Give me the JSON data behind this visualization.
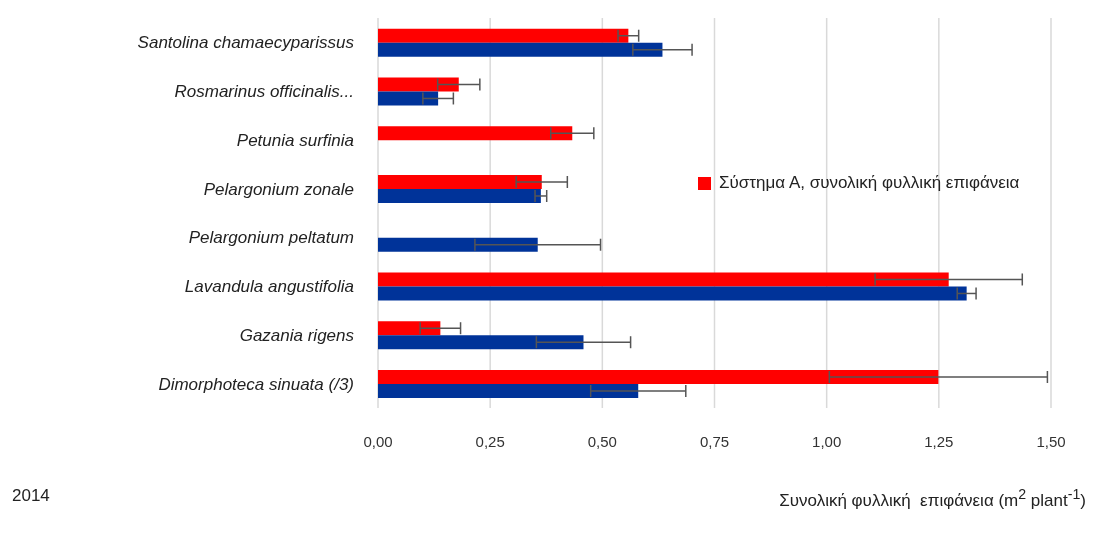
{
  "chart_data": {
    "type": "bar",
    "orientation": "horizontal",
    "categories": [
      "Santolina chamaecyparissus",
      "Rosmarinus officinalis...",
      "Petunia surfinia",
      "Pelargonium zonale",
      "Pelargonium peltatum",
      "Lavandula angustifolia",
      "Gazania rigens",
      "Dimorphoteca sinuata (/3)"
    ],
    "series": [
      {
        "name": "Σύστημα Α, συνολική φυλλική επιφάνεια",
        "color": "#ff0000",
        "values": [
          0.558,
          0.18,
          0.433,
          0.365,
          0,
          1.272,
          0.139,
          1.249
        ],
        "errors": [
          0.023,
          0.047,
          0.048,
          0.057,
          null,
          0.164,
          0.045,
          0.243
        ]
      },
      {
        "color": "#003399",
        "values": [
          0.634,
          0.134,
          0,
          0.363,
          0.356,
          1.312,
          0.458,
          0.58
        ],
        "errors": [
          0.066,
          0.034,
          null,
          0.013,
          0.14,
          0.021,
          0.105,
          0.106
        ]
      }
    ],
    "xlim": [
      0,
      1.5
    ],
    "xticks": [
      {
        "value": 0,
        "label": "0,00"
      },
      {
        "value": 0.25,
        "label": "0,25"
      },
      {
        "value": 0.5,
        "label": "0,50"
      },
      {
        "value": 0.75,
        "label": "0,75"
      },
      {
        "value": 1,
        "label": "1,00"
      },
      {
        "value": 1.25,
        "label": "1,25"
      },
      {
        "value": 1.5,
        "label": "1,50"
      }
    ],
    "xlabel": "Συνολική φυλλική  επιφάνεια (m$^{2}$ plant$^{-1}$)",
    "annotations": [
      "2014"
    ],
    "grid": "x",
    "legend": "right"
  }
}
